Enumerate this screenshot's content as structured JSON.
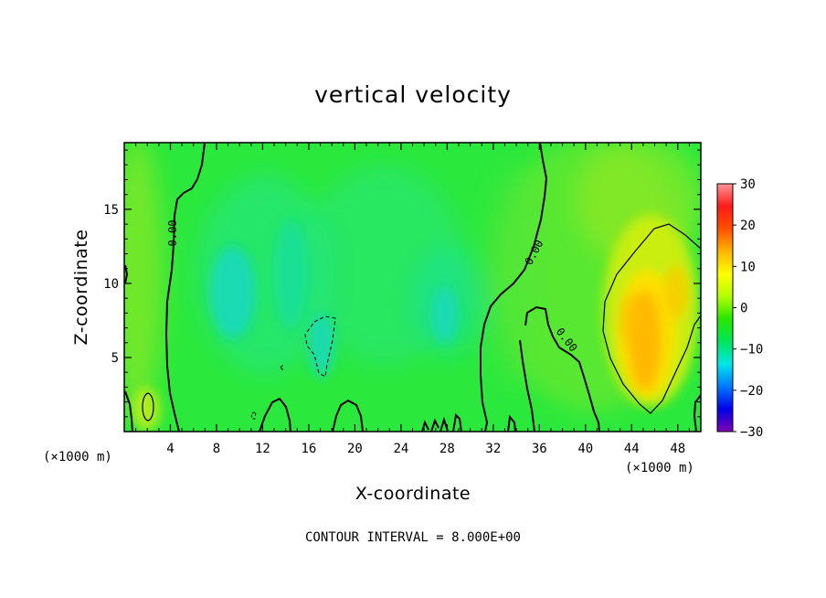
{
  "chart_data": {
    "type": "heatmap",
    "title": "vertical velocity",
    "xlabel": "X-coordinate",
    "ylabel": "Z-coordinate",
    "x_unit": "(×1000 m)",
    "z_unit": "(×1000 m)",
    "xlim": [
      0,
      50
    ],
    "ylim": [
      0,
      19.5
    ],
    "x_ticks": [
      4,
      8,
      12,
      16,
      20,
      24,
      28,
      32,
      36,
      40,
      44,
      48
    ],
    "y_ticks": [
      5,
      10,
      15
    ],
    "colorbar": {
      "range": [
        -30,
        30
      ],
      "ticks": [
        30,
        20,
        10,
        0,
        -10,
        -20,
        -30
      ],
      "tick_labels": [
        "30",
        "20",
        "10",
        "0",
        "−10",
        "−20",
        "−30"
      ],
      "colors": [
        "#7f00b2",
        "#0000e6",
        "#0078ff",
        "#00e6e6",
        "#00e65a",
        "#28e600",
        "#b4ff00",
        "#ffff00",
        "#ffb400",
        "#ff5000",
        "#ff1a1a",
        "#ff9696"
      ]
    },
    "contour_interval": 8.0,
    "contour_label": "0.00",
    "features": [
      {
        "kind": "updraft",
        "x": 45,
        "z": 6,
        "value": 14
      },
      {
        "kind": "updraft",
        "x": 2,
        "z": 2,
        "value": 8
      },
      {
        "kind": "downdraft",
        "x": 10,
        "z": 8,
        "value": -6
      },
      {
        "kind": "downdraft",
        "x": 17,
        "z": 6,
        "value": -8
      },
      {
        "kind": "downdraft",
        "x": 28,
        "z": 8,
        "value": -5
      }
    ],
    "footnote": "CONTOUR INTERVAL = 8.000E+00"
  }
}
